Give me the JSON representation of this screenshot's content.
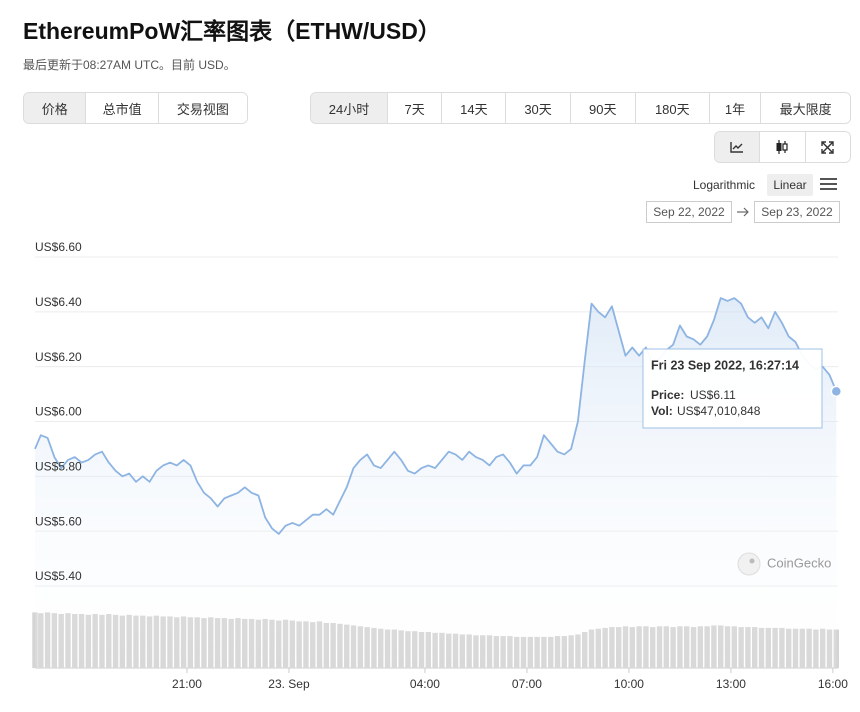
{
  "header": {
    "title": "EthereumPoW汇率图表（ETHW/USD）",
    "subtitle": "最后更新于08:27AM UTC。目前 USD。"
  },
  "controls": {
    "tabs": [
      "价格",
      "总市值",
      "交易视图"
    ],
    "ranges": [
      "24小时",
      "7天",
      "14天",
      "30天",
      "90天",
      "180天",
      "1年",
      "最大限度"
    ],
    "scales": [
      "Logarithmic",
      "Linear"
    ],
    "date_from": "Sep 22, 2022",
    "date_to": "Sep 23, 2022"
  },
  "chart_data": {
    "type": "line",
    "watermark": "CoinGecko",
    "x": [
      16.53,
      16.7,
      16.9,
      17.1,
      17.3,
      17.5,
      17.7,
      17.9,
      18.1,
      18.3,
      18.5,
      18.7,
      18.9,
      19.1,
      19.3,
      19.5,
      19.7,
      19.9,
      20.1,
      20.3,
      20.5,
      20.7,
      20.9,
      21.1,
      21.3,
      21.5,
      21.7,
      21.9,
      22.1,
      22.3,
      22.5,
      22.7,
      22.9,
      23.1,
      23.3,
      23.5,
      23.7,
      23.9,
      24.1,
      24.3,
      24.5,
      24.7,
      24.9,
      25.1,
      25.3,
      25.5,
      25.7,
      25.9,
      26.1,
      26.3,
      26.5,
      26.7,
      26.9,
      27.1,
      27.3,
      27.5,
      27.7,
      27.9,
      28.1,
      28.3,
      28.5,
      28.7,
      28.9,
      29.1,
      29.3,
      29.5,
      29.7,
      29.9,
      30.1,
      30.3,
      30.5,
      30.7,
      30.9,
      31.1,
      31.3,
      31.5,
      31.7,
      31.9,
      32.1,
      32.3,
      32.5,
      32.7,
      32.9,
      33.1,
      33.3,
      33.5,
      33.7,
      33.9,
      34.1,
      34.3,
      34.5,
      34.7,
      34.9,
      35.1,
      35.3,
      35.5,
      35.7,
      35.9,
      36.1,
      36.3,
      36.5,
      36.7,
      36.9,
      37.1,
      37.3,
      37.5,
      37.7,
      37.9,
      38.1,
      38.3,
      38.5,
      38.7,
      38.9,
      39.1,
      39.3,
      39.5,
      39.7,
      39.9,
      40.1
    ],
    "series": [
      {
        "color": "#8db4e2",
        "values": [
          5.9,
          5.95,
          5.94,
          5.87,
          5.83,
          5.86,
          5.87,
          5.85,
          5.86,
          5.88,
          5.89,
          5.85,
          5.82,
          5.8,
          5.81,
          5.78,
          5.8,
          5.78,
          5.82,
          5.84,
          5.85,
          5.84,
          5.86,
          5.84,
          5.78,
          5.74,
          5.72,
          5.69,
          5.72,
          5.73,
          5.74,
          5.76,
          5.74,
          5.73,
          5.65,
          5.61,
          5.59,
          5.62,
          5.63,
          5.62,
          5.64,
          5.66,
          5.66,
          5.68,
          5.66,
          5.71,
          5.76,
          5.83,
          5.86,
          5.88,
          5.84,
          5.83,
          5.86,
          5.89,
          5.86,
          5.82,
          5.81,
          5.83,
          5.84,
          5.83,
          5.86,
          5.89,
          5.88,
          5.86,
          5.89,
          5.87,
          5.86,
          5.84,
          5.87,
          5.88,
          5.85,
          5.81,
          5.84,
          5.84,
          5.87,
          5.95,
          5.92,
          5.89,
          5.88,
          5.9,
          6.0,
          6.22,
          6.43,
          6.4,
          6.38,
          6.42,
          6.33,
          6.24,
          6.27,
          6.24,
          6.27,
          6.21,
          6.23,
          6.26,
          6.28,
          6.35,
          6.31,
          6.3,
          6.28,
          6.31,
          6.37,
          6.45,
          6.44,
          6.45,
          6.43,
          6.38,
          6.36,
          6.38,
          6.34,
          6.4,
          6.36,
          6.31,
          6.29,
          6.24,
          6.21,
          6.19,
          6.2,
          6.17,
          6.11
        ]
      },
      {
        "color": "#d4d4d4",
        "axis": "y2",
        "values": [
          68000000,
          67000000,
          68000000,
          67000000,
          66000000,
          67000000,
          66000000,
          66000000,
          65000000,
          66000000,
          65000000,
          66000000,
          65000000,
          64000000,
          65000000,
          64000000,
          64000000,
          63000000,
          64000000,
          63000000,
          63000000,
          62000000,
          63000000,
          62000000,
          62000000,
          61000000,
          62000000,
          61000000,
          61000000,
          60000000,
          61000000,
          60000000,
          60000000,
          59000000,
          60000000,
          59000000,
          58000000,
          59000000,
          58000000,
          57000000,
          57000000,
          56000000,
          57000000,
          55000000,
          55000000,
          54000000,
          53000000,
          52000000,
          51000000,
          50000000,
          49000000,
          48000000,
          47000000,
          47000000,
          46000000,
          45000000,
          45000000,
          44000000,
          44000000,
          43000000,
          43000000,
          42000000,
          42000000,
          41000000,
          41000000,
          40000000,
          40000000,
          40000000,
          39000000,
          39000000,
          39000000,
          38000000,
          38000000,
          38000000,
          38000000,
          38000000,
          38000000,
          39000000,
          39000000,
          40000000,
          41000000,
          44000000,
          47000000,
          48000000,
          49000000,
          50000000,
          50000000,
          51000000,
          50000000,
          51000000,
          51000000,
          50000000,
          51000000,
          51000000,
          50000000,
          51000000,
          51000000,
          50000000,
          51000000,
          51000000,
          52000000,
          52000000,
          51000000,
          51000000,
          50000000,
          50000000,
          50000000,
          49000000,
          49000000,
          49000000,
          49000000,
          48000000,
          48000000,
          48000000,
          48000000,
          47000000,
          48000000,
          47000000,
          47010848
        ]
      }
    ],
    "xlim": [
      16.53,
      40.15
    ],
    "xticks": [
      {
        "value": 21,
        "label": "21:00"
      },
      {
        "value": 24,
        "label": "23. Sep"
      },
      {
        "value": 28,
        "label": "04:00"
      },
      {
        "value": 31,
        "label": "07:00"
      },
      {
        "value": 34,
        "label": "10:00"
      },
      {
        "value": 37,
        "label": "13:00"
      },
      {
        "value": 40,
        "label": "16:00"
      }
    ],
    "ylim": [
      5.4,
      6.6
    ],
    "yticks": [
      {
        "value": 5.4,
        "label": "US$5.40"
      },
      {
        "value": 5.6,
        "label": "US$5.60"
      },
      {
        "value": 5.8,
        "label": "US$5.80"
      },
      {
        "value": 6.0,
        "label": "US$6.00"
      },
      {
        "value": 6.2,
        "label": "US$6.20"
      },
      {
        "value": 6.4,
        "label": "US$6.40"
      },
      {
        "value": 6.6,
        "label": "US$6.60"
      }
    ],
    "y2lim": [
      0,
      110000000
    ],
    "grid": true,
    "tooltip": {
      "title": "Fri 23 Sep 2022, 16:27:14",
      "price_label": "Price:",
      "price": "US$6.11",
      "vol_label": "Vol:",
      "vol": "US$47,010,848"
    }
  }
}
